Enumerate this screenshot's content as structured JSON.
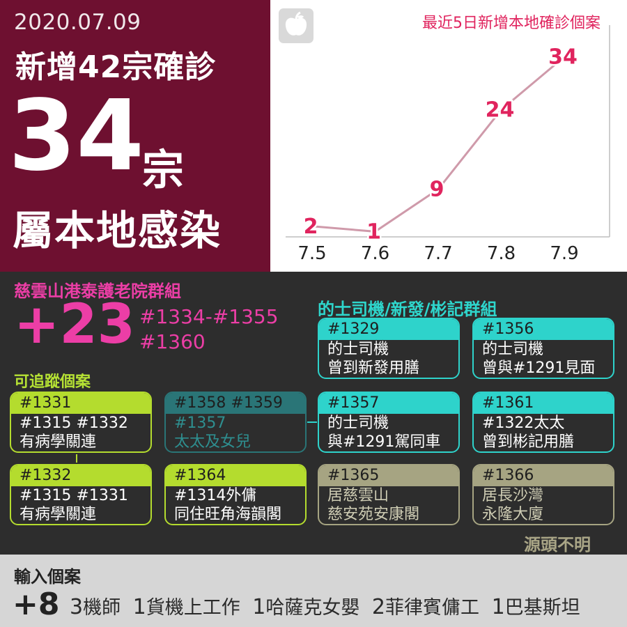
{
  "header": {
    "date": "2020.07.09",
    "headline": "新增42宗確診",
    "local_count": "34",
    "local_unit": "宗",
    "local_label": "屬本地感染"
  },
  "chart_data": {
    "type": "line",
    "title": "最近5日新增本地確診個案",
    "categories": [
      "7.5",
      "7.6",
      "7.7",
      "7.8",
      "7.9"
    ],
    "values": [
      2,
      1,
      9,
      24,
      34
    ],
    "ylim": [
      0,
      40
    ],
    "line_color": "#cf9aaa",
    "label_color": "#e0245e"
  },
  "cluster": {
    "title": "慈雲山港泰護老院群組",
    "count": "+23",
    "ids_line1": "#1334-#1355",
    "ids_line2": "#1360",
    "color": "#ec3ea6"
  },
  "taxi_cluster": {
    "title": "的士司機/新發/彬記群組",
    "cards": [
      {
        "id": "#1329",
        "line1": "的士司機",
        "line2": "曾到新發用膳"
      },
      {
        "id": "#1356",
        "line1": "的士司機",
        "line2": "曾與#1291見面"
      },
      {
        "id": "#1357",
        "line1": "的士司機",
        "line2": "與#1291駕同車"
      },
      {
        "id": "#1361",
        "line1": "#1322太太",
        "line2": "曾到彬記用膳"
      }
    ]
  },
  "traceable": {
    "title": "可追蹤個案",
    "cards": [
      {
        "id": "#1331",
        "line1": "#1315 #1332",
        "line2": "有病學關連"
      },
      {
        "id": "#1358 #1359",
        "line1": "#1357",
        "line2": "太太及女兒"
      },
      {
        "id": "#1332",
        "line1": "#1315 #1331",
        "line2": "有病學關連"
      },
      {
        "id": "#1364",
        "line1": "#1314外傭",
        "line2": "同住旺角海韻閣"
      }
    ]
  },
  "unknown": {
    "label": "源頭不明",
    "cards": [
      {
        "id": "#1365",
        "line1": "居慈雲山",
        "line2": "慈安苑安康閣"
      },
      {
        "id": "#1366",
        "line1": "居長沙灣",
        "line2": "永隆大廈"
      }
    ]
  },
  "imported": {
    "title": "輸入個案",
    "count": "+8",
    "items": [
      {
        "num": "3",
        "label": "機師"
      },
      {
        "num": "1",
        "label": "貨機上工作"
      },
      {
        "num": "1",
        "label": "哈薩克女嬰"
      },
      {
        "num": "2",
        "label": "菲律賓傭工"
      },
      {
        "num": "1",
        "label": "巴基斯坦"
      }
    ]
  },
  "icons": {
    "logo": "apple-logo-icon"
  }
}
